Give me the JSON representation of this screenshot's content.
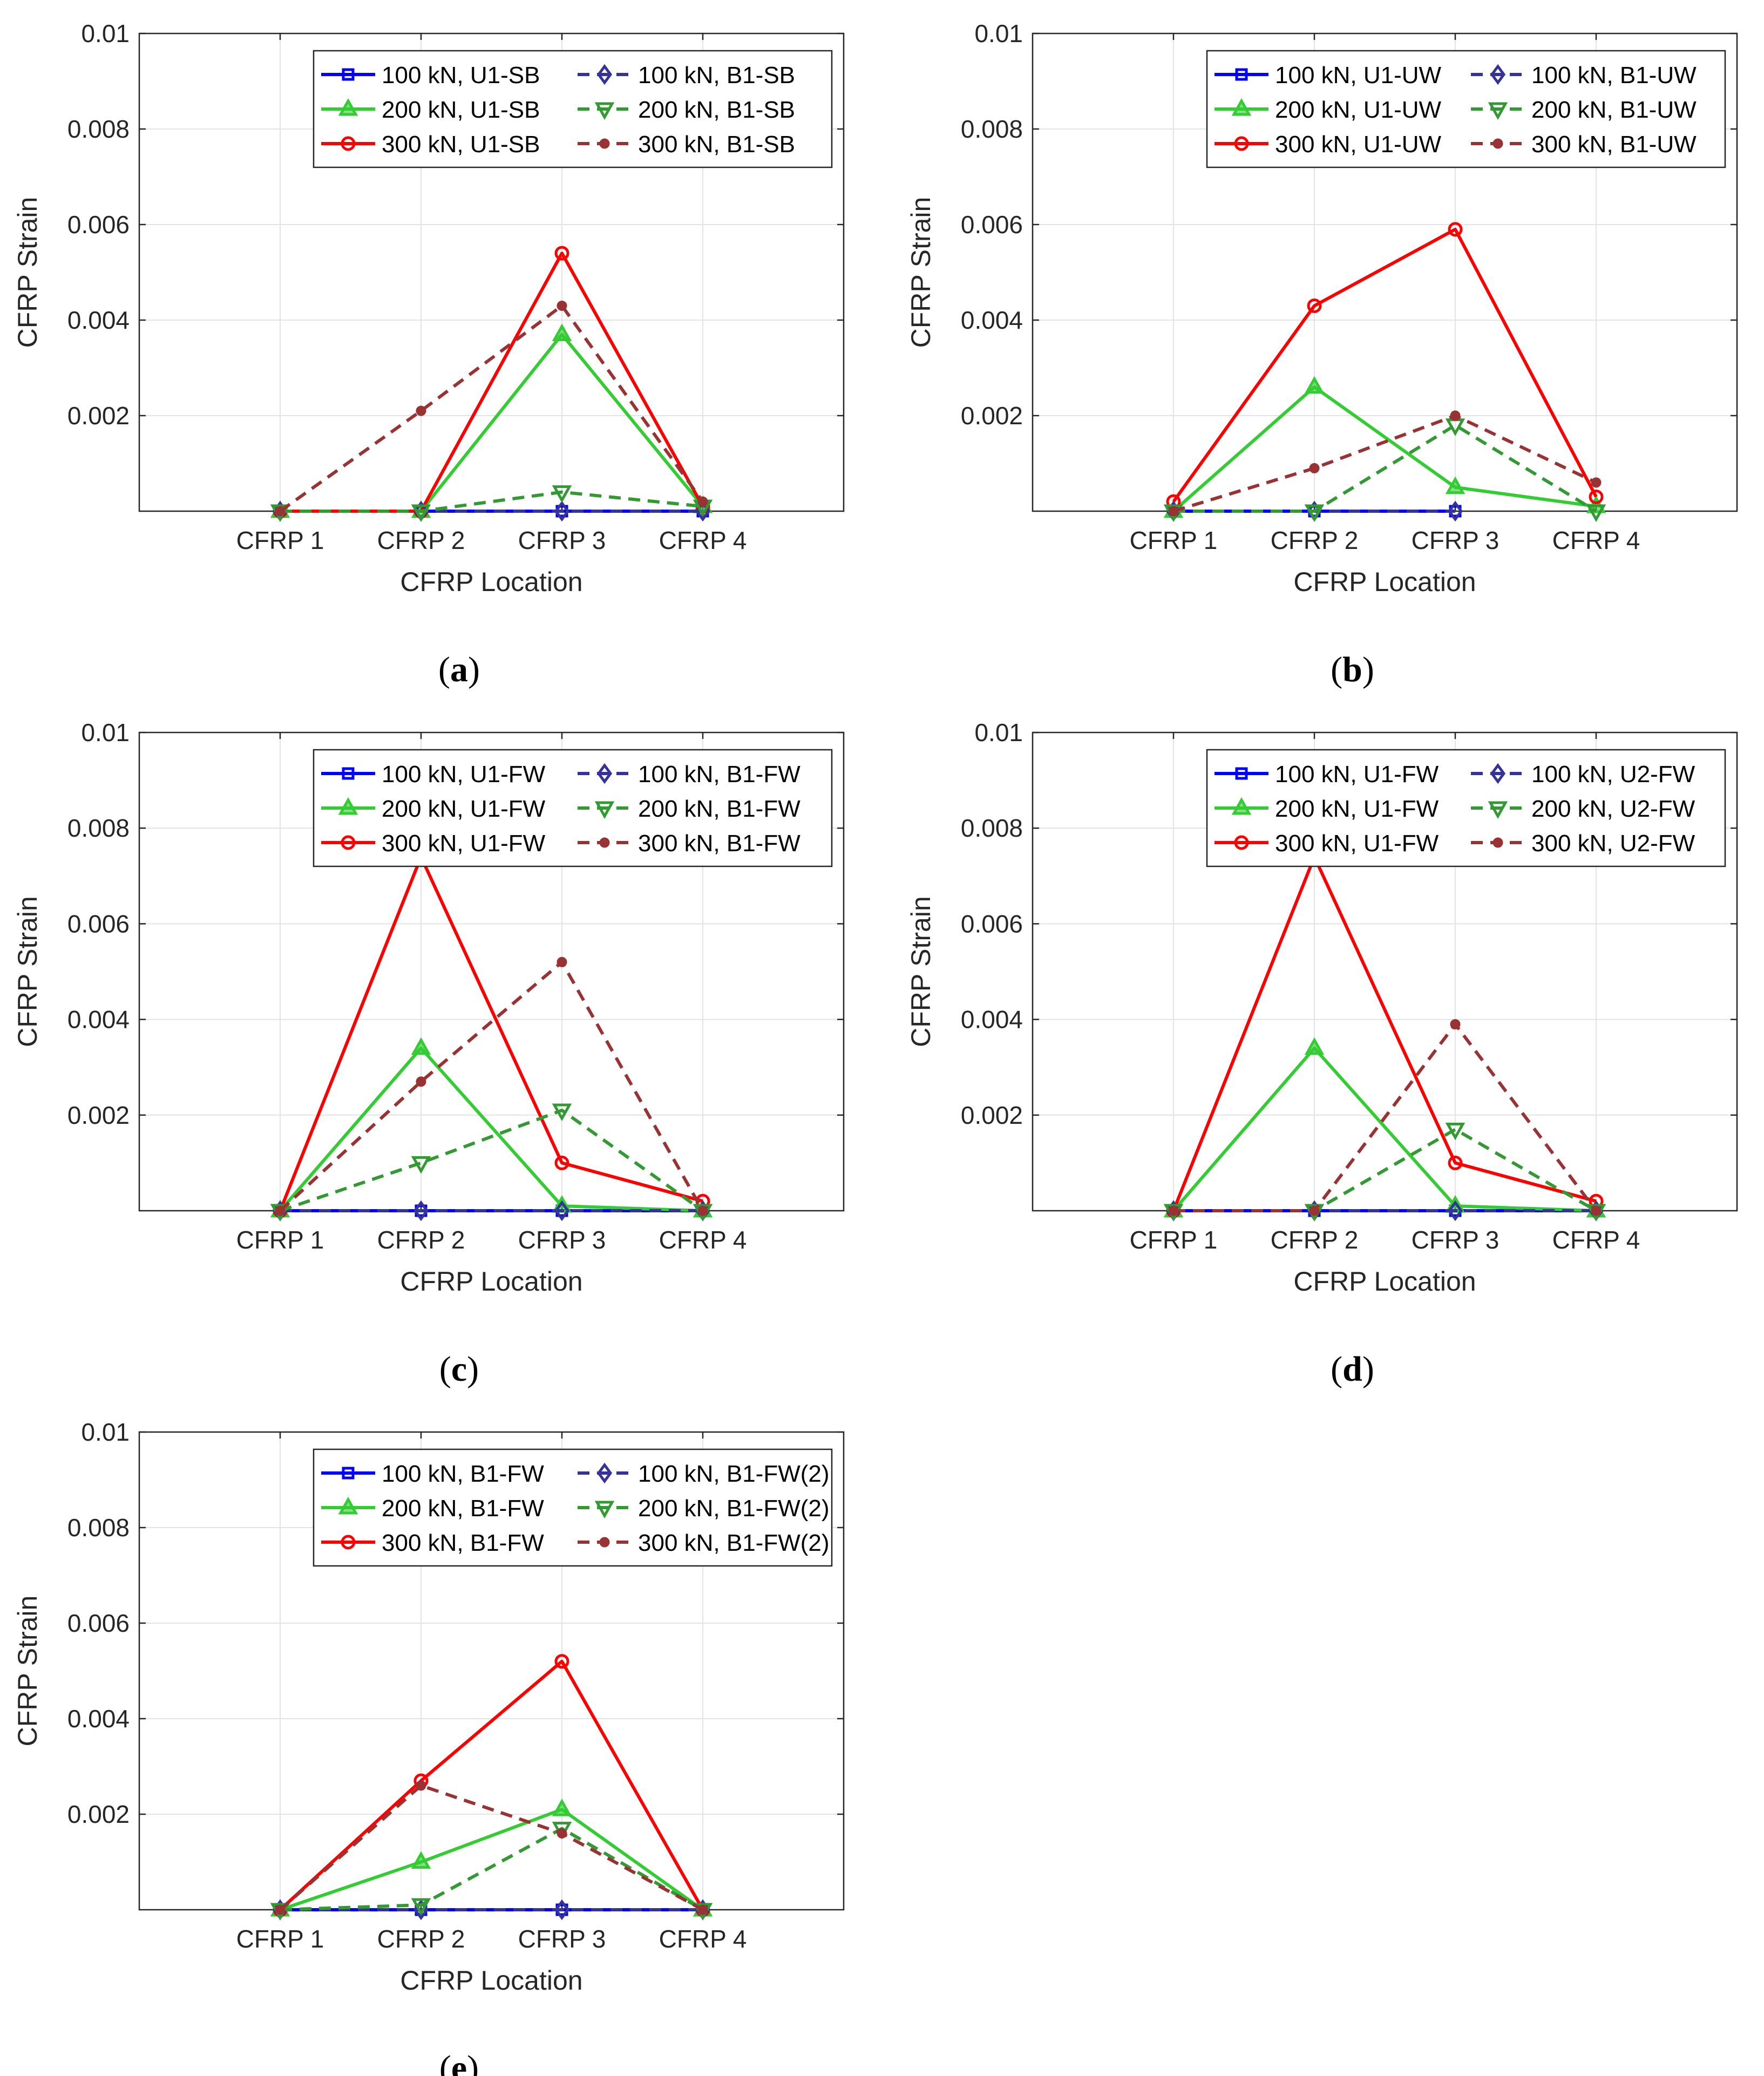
{
  "figure": {
    "panels": [
      {
        "caption_letter": "a",
        "legend": {
          "solid": [
            "100 kN, U1-SB",
            "200 kN, U1-SB",
            "300 kN, U1-SB"
          ],
          "dashed": [
            "100 kN, B1-SB",
            "200 kN, B1-SB",
            "300 kN, B1-SB"
          ]
        }
      },
      {
        "caption_letter": "b",
        "legend": {
          "solid": [
            "100 kN, U1-UW",
            "200 kN, U1-UW",
            "300 kN, U1-UW"
          ],
          "dashed": [
            "100 kN, B1-UW",
            "200 kN, B1-UW",
            "300 kN, B1-UW"
          ]
        }
      },
      {
        "caption_letter": "c",
        "legend": {
          "solid": [
            "100 kN, U1-FW",
            "200 kN, U1-FW",
            "300 kN, U1-FW"
          ],
          "dashed": [
            "100 kN, B1-FW",
            "200 kN, B1-FW",
            "300 kN, B1-FW"
          ]
        }
      },
      {
        "caption_letter": "d",
        "legend": {
          "solid": [
            "100 kN, U1-FW",
            "200 kN, U1-FW",
            "300 kN, U1-FW"
          ],
          "dashed": [
            "100 kN, U2-FW",
            "200 kN, U2-FW",
            "300 kN, U2-FW"
          ]
        }
      },
      {
        "caption_letter": "e",
        "legend": {
          "solid": [
            "100 kN, B1-FW",
            "200 kN, B1-FW",
            "300 kN, B1-FW"
          ],
          "dashed": [
            "100 kN, B1-FW(2)",
            "200 kN, B1-FW(2)",
            "300 kN, B1-FW(2)"
          ]
        }
      }
    ],
    "colors": {
      "s100": "#0000ff",
      "s200": "#33cc33",
      "s300": "#ff0000",
      "d100": "#333399",
      "d200": "#339933",
      "d300": "#993333"
    }
  },
  "chart_data": [
    {
      "type": "line",
      "xlabel": "CFRP Location",
      "ylabel": "CFRP Strain",
      "categories": [
        "CFRP 1",
        "CFRP 2",
        "CFRP 3",
        "CFRP 4"
      ],
      "ylim": [
        0,
        0.01
      ],
      "yticks": [
        "0.002",
        "0.004",
        "0.006",
        "0.008",
        "0.01"
      ],
      "grid": true,
      "legend_position": "top-right",
      "series": [
        {
          "name": "100 kN, U1-SB",
          "style": "solid",
          "marker": "square",
          "values": [
            0,
            0,
            0,
            0
          ]
        },
        {
          "name": "200 kN, U1-SB",
          "style": "solid",
          "marker": "triangle-up",
          "values": [
            0,
            0,
            0.0037,
            0.0001
          ]
        },
        {
          "name": "300 kN, U1-SB",
          "style": "solid",
          "marker": "circle",
          "values": [
            0,
            0,
            0.0054,
            0.0001
          ]
        },
        {
          "name": "100 kN, B1-SB",
          "style": "dashed",
          "marker": "diamond",
          "values": [
            0,
            0,
            0,
            0
          ]
        },
        {
          "name": "200 kN, B1-SB",
          "style": "dashed",
          "marker": "triangle-down",
          "values": [
            0,
            0,
            0.0004,
            0.0001
          ]
        },
        {
          "name": "300 kN, B1-SB",
          "style": "dashed",
          "marker": "dot",
          "values": [
            0,
            0.0021,
            0.0043,
            0.0002
          ]
        }
      ]
    },
    {
      "type": "line",
      "xlabel": "CFRP Location",
      "ylabel": "CFRP Strain",
      "categories": [
        "CFRP 1",
        "CFRP 2",
        "CFRP 3",
        "CFRP 4"
      ],
      "ylim": [
        0,
        0.01
      ],
      "yticks": [
        "0.002",
        "0.004",
        "0.006",
        "0.008",
        "0.01"
      ],
      "grid": true,
      "legend_position": "top-right",
      "series": [
        {
          "name": "100 kN, U1-UW",
          "style": "solid",
          "marker": "square",
          "values": [
            0,
            0,
            0,
            null
          ]
        },
        {
          "name": "200 kN, U1-UW",
          "style": "solid",
          "marker": "triangle-up",
          "values": [
            0,
            0.0026,
            0.0005,
            0.0001
          ]
        },
        {
          "name": "300 kN, U1-UW",
          "style": "solid",
          "marker": "circle",
          "values": [
            0.0002,
            0.0043,
            0.0059,
            0.0003
          ]
        },
        {
          "name": "100 kN, B1-UW",
          "style": "dashed",
          "marker": "diamond",
          "values": [
            0,
            0,
            0,
            null
          ]
        },
        {
          "name": "200 kN, B1-UW",
          "style": "dashed",
          "marker": "triangle-down",
          "values": [
            0,
            0,
            0.0018,
            0
          ]
        },
        {
          "name": "300 kN, B1-UW",
          "style": "dashed",
          "marker": "dot",
          "values": [
            0,
            0.0009,
            0.002,
            0.0006
          ]
        }
      ]
    },
    {
      "type": "line",
      "xlabel": "CFRP Location",
      "ylabel": "CFRP Strain",
      "categories": [
        "CFRP 1",
        "CFRP 2",
        "CFRP 3",
        "CFRP 4"
      ],
      "ylim": [
        0,
        0.01
      ],
      "yticks": [
        "0.002",
        "0.004",
        "0.006",
        "0.008",
        "0.01"
      ],
      "grid": true,
      "legend_position": "top-right",
      "series": [
        {
          "name": "100 kN, U1-FW",
          "style": "solid",
          "marker": "square",
          "values": [
            0,
            0,
            0,
            0
          ]
        },
        {
          "name": "200 kN, U1-FW",
          "style": "solid",
          "marker": "triangle-up",
          "values": [
            0,
            0.0034,
            0.0001,
            0
          ]
        },
        {
          "name": "300 kN, U1-FW",
          "style": "solid",
          "marker": "circle",
          "values": [
            0,
            0.0074,
            0.001,
            0.0002
          ]
        },
        {
          "name": "100 kN, B1-FW",
          "style": "dashed",
          "marker": "diamond",
          "values": [
            0,
            0,
            0,
            0
          ]
        },
        {
          "name": "200 kN, B1-FW",
          "style": "dashed",
          "marker": "triangle-down",
          "values": [
            0,
            0.001,
            0.0021,
            0
          ]
        },
        {
          "name": "300 kN, B1-FW",
          "style": "dashed",
          "marker": "dot",
          "values": [
            0,
            0.0027,
            0.0052,
            0
          ]
        }
      ]
    },
    {
      "type": "line",
      "xlabel": "CFRP Location",
      "ylabel": "CFRP Strain",
      "categories": [
        "CFRP 1",
        "CFRP 2",
        "CFRP 3",
        "CFRP 4"
      ],
      "ylim": [
        0,
        0.01
      ],
      "yticks": [
        "0.002",
        "0.004",
        "0.006",
        "0.008",
        "0.01"
      ],
      "grid": true,
      "legend_position": "top-right",
      "series": [
        {
          "name": "100 kN, U1-FW",
          "style": "solid",
          "marker": "square",
          "values": [
            0,
            0,
            0,
            0
          ]
        },
        {
          "name": "200 kN, U1-FW",
          "style": "solid",
          "marker": "triangle-up",
          "values": [
            0,
            0.0034,
            0.0001,
            0
          ]
        },
        {
          "name": "300 kN, U1-FW",
          "style": "solid",
          "marker": "circle",
          "values": [
            0,
            0.0074,
            0.001,
            0.0002
          ]
        },
        {
          "name": "100 kN, U2-FW",
          "style": "dashed",
          "marker": "diamond",
          "values": [
            0,
            0,
            0,
            0
          ]
        },
        {
          "name": "200 kN, U2-FW",
          "style": "dashed",
          "marker": "triangle-down",
          "values": [
            0,
            0,
            0.0017,
            0
          ]
        },
        {
          "name": "300 kN, U2-FW",
          "style": "dashed",
          "marker": "dot",
          "values": [
            0,
            0,
            0.0039,
            0
          ]
        }
      ]
    },
    {
      "type": "line",
      "xlabel": "CFRP Location",
      "ylabel": "CFRP Strain",
      "categories": [
        "CFRP 1",
        "CFRP 2",
        "CFRP 3",
        "CFRP 4"
      ],
      "ylim": [
        0,
        0.01
      ],
      "yticks": [
        "0.002",
        "0.004",
        "0.006",
        "0.008",
        "0.01"
      ],
      "grid": true,
      "legend_position": "top-right",
      "series": [
        {
          "name": "100 kN, B1-FW",
          "style": "solid",
          "marker": "square",
          "values": [
            0,
            0,
            0,
            0
          ]
        },
        {
          "name": "200 kN, B1-FW",
          "style": "solid",
          "marker": "triangle-up",
          "values": [
            0,
            0.001,
            0.0021,
            0
          ]
        },
        {
          "name": "300 kN, B1-FW",
          "style": "solid",
          "marker": "circle",
          "values": [
            0,
            0.0027,
            0.0052,
            0
          ]
        },
        {
          "name": "100 kN, B1-FW(2)",
          "style": "dashed",
          "marker": "diamond",
          "values": [
            0,
            0,
            0,
            0
          ]
        },
        {
          "name": "200 kN, B1-FW(2)",
          "style": "dashed",
          "marker": "triangle-down",
          "values": [
            0,
            0.0001,
            0.0017,
            0
          ]
        },
        {
          "name": "300 kN, B1-FW(2)",
          "style": "dashed",
          "marker": "dot",
          "values": [
            0,
            0.0026,
            0.0016,
            0
          ]
        }
      ]
    }
  ]
}
